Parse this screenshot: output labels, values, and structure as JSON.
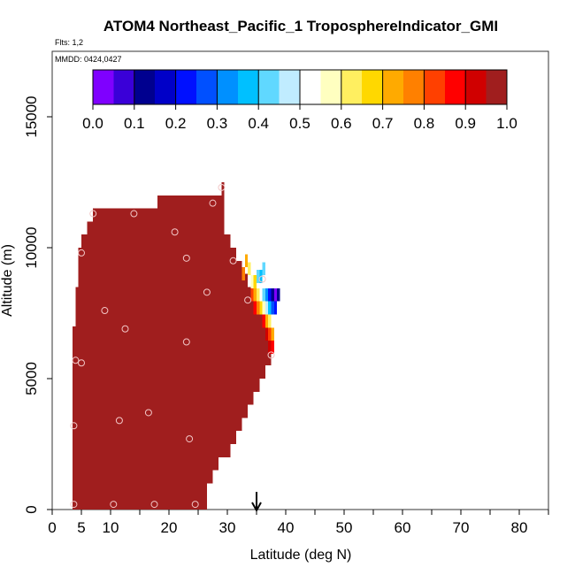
{
  "chart_data": {
    "type": "heatmap",
    "title": "ATOM4 Northeast_Pacific_1 TroposphereIndicator_GMI",
    "subtitle_flights": "Flts: 1,2",
    "subtitle_dates": "MMDD: 0424,0427",
    "xlabel": "Latitude (deg N)",
    "ylabel": "Altitude (m)",
    "xlim": [
      0,
      85
    ],
    "ylim": [
      0,
      17500
    ],
    "xticks": [
      0,
      5,
      10,
      20,
      30,
      40,
      50,
      60,
      70,
      80
    ],
    "xticks_minor": [
      15,
      25,
      35,
      45,
      55,
      65,
      75,
      85
    ],
    "yticks": [
      0,
      5000,
      10000,
      15000
    ],
    "colorbar": {
      "min": 0,
      "max": 1,
      "tick_labels": [
        "0.0",
        "0.1",
        "0.2",
        "0.3",
        "0.4",
        "0.5",
        "0.6",
        "0.7",
        "0.8",
        "0.9",
        "1.0"
      ],
      "colors": [
        "#7f00ff",
        "#3a00d8",
        "#00008f",
        "#0000c8",
        "#0010ff",
        "#0050ff",
        "#0090ff",
        "#00c0ff",
        "#60d8ff",
        "#c0ecff",
        "#ffffff",
        "#ffffc0",
        "#ffef60",
        "#ffd800",
        "#ffaa00",
        "#ff8000",
        "#ff4000",
        "#ff0000",
        "#d00000",
        "#a01e1e"
      ]
    },
    "fill_color": "#a01e1e",
    "region": {
      "segments": [
        {
          "y0": 0,
          "y1": 1000,
          "x0": 3.5,
          "x1": 26.5
        },
        {
          "y0": 1000,
          "y1": 1500,
          "x0": 3.5,
          "x1": 27.5
        },
        {
          "y0": 1500,
          "y1": 2000,
          "x0": 3.5,
          "x1": 28.5
        },
        {
          "y0": 2000,
          "y1": 2500,
          "x0": 3.5,
          "x1": 30.5
        },
        {
          "y0": 2500,
          "y1": 3000,
          "x0": 3.5,
          "x1": 31.5
        },
        {
          "y0": 3000,
          "y1": 3500,
          "x0": 3.5,
          "x1": 32.5
        },
        {
          "y0": 3500,
          "y1": 4000,
          "x0": 3.5,
          "x1": 33.5
        },
        {
          "y0": 4000,
          "y1": 4500,
          "x0": 3.5,
          "x1": 34.5
        },
        {
          "y0": 4500,
          "y1": 5000,
          "x0": 3.5,
          "x1": 35.5
        },
        {
          "y0": 5000,
          "y1": 5500,
          "x0": 3.5,
          "x1": 36.5
        },
        {
          "y0": 5500,
          "y1": 6000,
          "x0": 3.5,
          "x1": 37.5
        },
        {
          "y0": 6000,
          "y1": 7000,
          "x0": 3.5,
          "x1": 37.5
        },
        {
          "y0": 7000,
          "y1": 8000,
          "x0": 4.0,
          "x1": 36.5
        },
        {
          "y0": 8000,
          "y1": 8500,
          "x0": 4.0,
          "x1": 34.5
        },
        {
          "y0": 8500,
          "y1": 9000,
          "x0": 4.5,
          "x1": 33.5
        },
        {
          "y0": 9000,
          "y1": 9500,
          "x0": 4.5,
          "x1": 32.5
        },
        {
          "y0": 9500,
          "y1": 10000,
          "x0": 4.5,
          "x1": 31.5
        },
        {
          "y0": 10000,
          "y1": 10500,
          "x0": 5.0,
          "x1": 30.5
        },
        {
          "y0": 10500,
          "y1": 11000,
          "x0": 6.0,
          "x1": 29.5
        },
        {
          "y0": 11000,
          "y1": 11500,
          "x0": 7.0,
          "x1": 29.5
        },
        {
          "y0": 11500,
          "y1": 12000,
          "x0": 18.0,
          "x1": 29.5
        },
        {
          "y0": 12000,
          "y1": 12500,
          "x0": 29.0,
          "x1": 29.5
        }
      ],
      "edge_cells": [
        {
          "x": 32.5,
          "y": 9000,
          "v": 0.75
        },
        {
          "x": 33.0,
          "y": 9500,
          "v": 0.72
        },
        {
          "x": 33.5,
          "y": 9200,
          "v": 0.62
        },
        {
          "x": 34.0,
          "y": 8700,
          "v": 0.55
        },
        {
          "x": 34.5,
          "y": 8700,
          "v": 0.68
        },
        {
          "x": 35.0,
          "y": 8900,
          "v": 0.42
        },
        {
          "x": 35.5,
          "y": 8900,
          "v": 0.38
        },
        {
          "x": 36.0,
          "y": 9200,
          "v": 0.44
        },
        {
          "x": 34.0,
          "y": 8200,
          "v": 0.8
        },
        {
          "x": 34.5,
          "y": 8200,
          "v": 0.72
        },
        {
          "x": 35.0,
          "y": 8200,
          "v": 0.62
        },
        {
          "x": 35.5,
          "y": 8200,
          "v": 0.5
        },
        {
          "x": 36.0,
          "y": 8200,
          "v": 0.42
        },
        {
          "x": 36.5,
          "y": 8200,
          "v": 0.32
        },
        {
          "x": 37.0,
          "y": 8200,
          "v": 0.2
        },
        {
          "x": 37.5,
          "y": 8200,
          "v": 0.1
        },
        {
          "x": 38.0,
          "y": 8200,
          "v": 0.04
        },
        {
          "x": 38.5,
          "y": 8200,
          "v": 0.12
        },
        {
          "x": 34.5,
          "y": 7700,
          "v": 0.85
        },
        {
          "x": 35.0,
          "y": 7700,
          "v": 0.78
        },
        {
          "x": 35.5,
          "y": 7700,
          "v": 0.68
        },
        {
          "x": 36.0,
          "y": 7700,
          "v": 0.55
        },
        {
          "x": 36.5,
          "y": 7700,
          "v": 0.45
        },
        {
          "x": 37.0,
          "y": 7700,
          "v": 0.35
        },
        {
          "x": 37.5,
          "y": 7700,
          "v": 0.25
        },
        {
          "x": 38.0,
          "y": 7700,
          "v": 0.2
        },
        {
          "x": 36.0,
          "y": 7200,
          "v": 0.85
        },
        {
          "x": 36.5,
          "y": 7200,
          "v": 0.72
        },
        {
          "x": 37.0,
          "y": 7200,
          "v": 0.6
        },
        {
          "x": 37.5,
          "y": 7200,
          "v": 0.5
        },
        {
          "x": 36.5,
          "y": 6700,
          "v": 0.9
        },
        {
          "x": 37.0,
          "y": 6700,
          "v": 0.8
        },
        {
          "x": 37.5,
          "y": 6700,
          "v": 0.7
        },
        {
          "x": 37.0,
          "y": 6200,
          "v": 0.92
        },
        {
          "x": 37.5,
          "y": 6200,
          "v": 0.85
        }
      ]
    },
    "points": [
      {
        "x": 3.7,
        "y": 200
      },
      {
        "x": 10.5,
        "y": 200
      },
      {
        "x": 17.5,
        "y": 200
      },
      {
        "x": 24.5,
        "y": 200
      },
      {
        "x": 3.7,
        "y": 3200
      },
      {
        "x": 11.5,
        "y": 3400
      },
      {
        "x": 16.5,
        "y": 3700
      },
      {
        "x": 23.5,
        "y": 2700
      },
      {
        "x": 4.0,
        "y": 5700
      },
      {
        "x": 5.0,
        "y": 5600
      },
      {
        "x": 23.0,
        "y": 6400
      },
      {
        "x": 12.5,
        "y": 6900
      },
      {
        "x": 9.0,
        "y": 7600
      },
      {
        "x": 26.5,
        "y": 8300
      },
      {
        "x": 33.5,
        "y": 8000
      },
      {
        "x": 36.0,
        "y": 8800
      },
      {
        "x": 37.5,
        "y": 5900
      },
      {
        "x": 5.0,
        "y": 9800
      },
      {
        "x": 23.0,
        "y": 9600
      },
      {
        "x": 31.0,
        "y": 9500
      },
      {
        "x": 21.0,
        "y": 10600
      },
      {
        "x": 7.0,
        "y": 11300
      },
      {
        "x": 14.0,
        "y": 11300
      },
      {
        "x": 27.5,
        "y": 11700
      },
      {
        "x": 29.0,
        "y": 12300
      }
    ],
    "point_color": "#f2c7c7",
    "arrow": {
      "x": 35
    }
  }
}
